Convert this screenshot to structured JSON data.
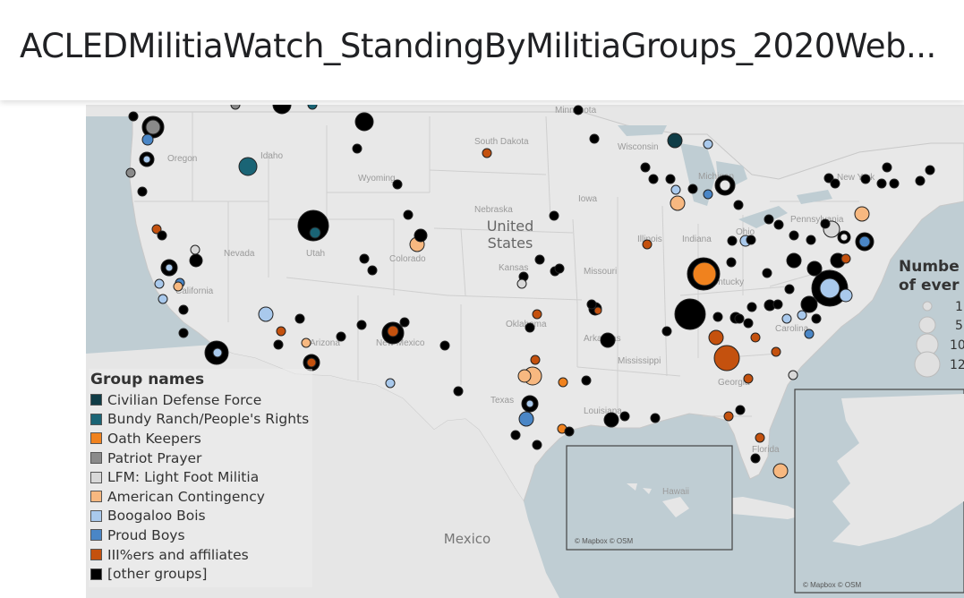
{
  "title": "ACLEDMilitiaWatch_StandingByMilitiaGroups_2020Web...",
  "map": {
    "country_label": "United",
    "country_label2": "States",
    "mexico": "Mexico",
    "attribution_hawaii": "© Mapbox © OSM",
    "attribution_alaska": "© Mapbox © OSM",
    "state_labels": [
      "Oregon",
      "Idaho",
      "Wyoming",
      "Nevada",
      "Utah",
      "Colorado",
      "California",
      "Arizona",
      "New Mexico",
      "Texas",
      "Oklahoma",
      "Kansas",
      "Nebraska",
      "South Dakota",
      "Minnesota",
      "Iowa",
      "Missouri",
      "Arkansas",
      "Louisiana",
      "Mississippi",
      "Illinois",
      "Indiana",
      "Wisconsin",
      "Michigan",
      "Ohio",
      "Kentucky",
      "Pennsylvania",
      "New York",
      "Georgia",
      "Carolina",
      "Florida",
      "Hawaii"
    ]
  },
  "legend": {
    "title": "Group names",
    "items": [
      {
        "label": "Civilian Defense Force",
        "color": "#0f3c46"
      },
      {
        "label": "Bundy Ranch/People's Rights",
        "color": "#1a6475"
      },
      {
        "label": "Oath Keepers",
        "color": "#f0821e"
      },
      {
        "label": "Patriot Prayer",
        "color": "#8a8a8a"
      },
      {
        "label": "LFM: Light Foot Militia",
        "color": "#d8d8d8"
      },
      {
        "label": "American Contingency",
        "color": "#f7b880"
      },
      {
        "label": "Boogaloo Bois",
        "color": "#a9c9ec"
      },
      {
        "label": "Proud Boys",
        "color": "#4a86c6"
      },
      {
        "label": "III%ers and affiliates",
        "color": "#c4510e"
      },
      {
        "label": "[other groups]",
        "color": "#000000"
      }
    ]
  },
  "size_legend": {
    "title_line1": "Numbe",
    "title_line2": "of ever",
    "values": [
      "1",
      "5",
      "10",
      "12"
    ]
  }
}
